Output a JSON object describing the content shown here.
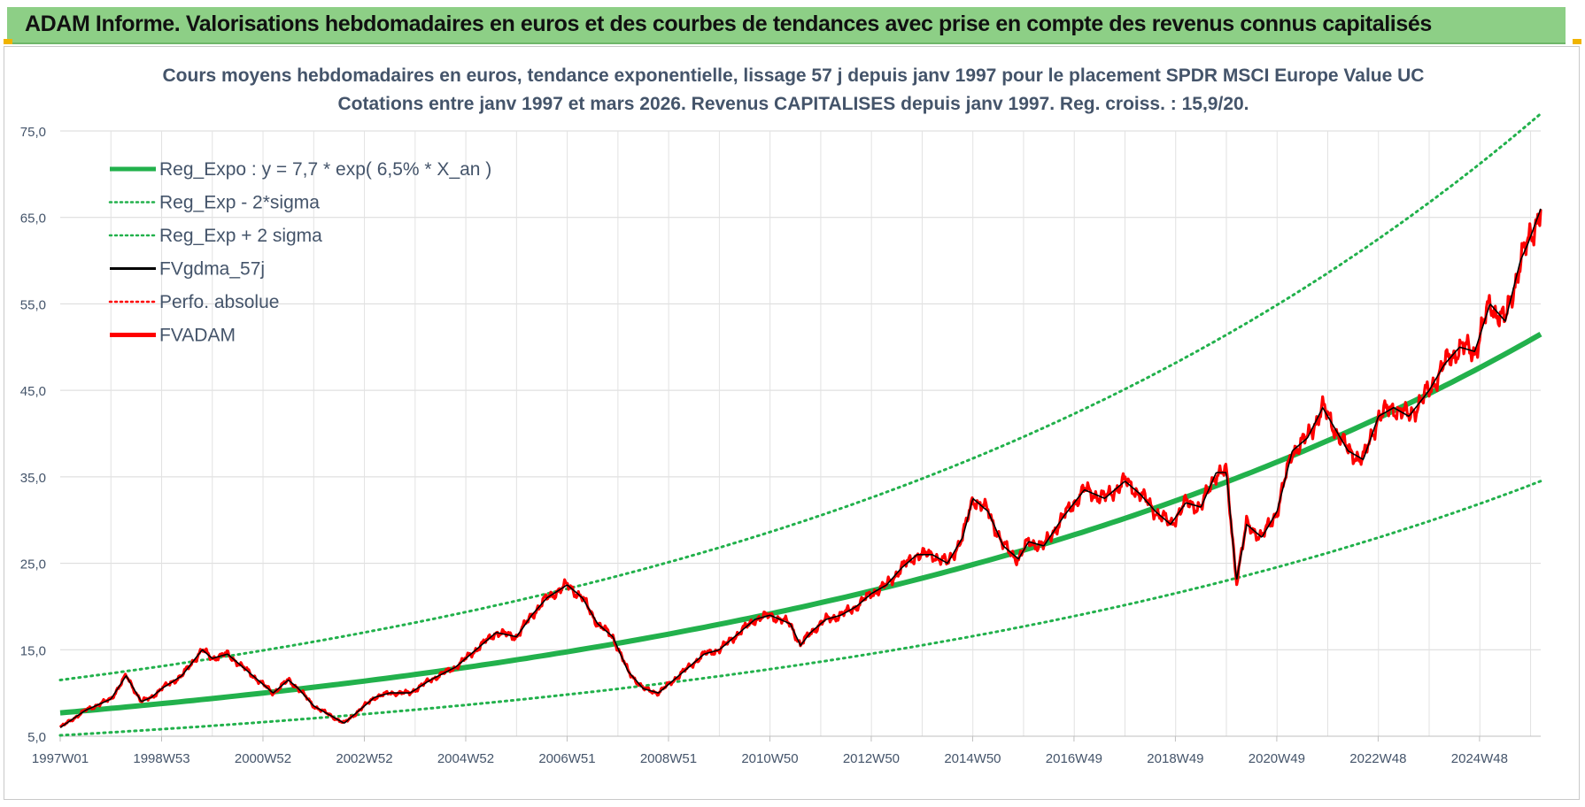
{
  "banner": {
    "title": "ADAM Informe. Valorisations hebdomadaires en euros et des courbes de tendances avec prise en compte des revenus connus capitalisés"
  },
  "chart_data": {
    "type": "line",
    "title_line1": "Cours moyens hebdomadaires en euros, tendance exponentielle, lissage 57 j depuis janv 1997  pour le placement SPDR MSCI Europe Value UC",
    "title_line2": "Cotations entre janv 1997 et mars 2026. Revenus CAPITALISES depuis janv 1997. Reg. croiss. : 15,9/20.",
    "x_start_year": 1997.0,
    "x_end_year": 2026.2,
    "x_tick_labels": [
      "1997W01",
      "1998W53",
      "2000W52",
      "2002W52",
      "2004W52",
      "2006W51",
      "2008W51",
      "2010W50",
      "2012W50",
      "2014W50",
      "2016W49",
      "2018W49",
      "2020W49",
      "2022W48",
      "2024W48"
    ],
    "ylim": [
      5,
      75
    ],
    "y_ticks": [
      "5,0",
      "15,0",
      "25,0",
      "35,0",
      "45,0",
      "55,0",
      "65,0",
      "75,0"
    ],
    "grid": true,
    "legend_position": "top-left",
    "legend": [
      {
        "label": "Reg_Expo : y = 7,7 * exp( 6,5% *  X_an )",
        "color": "#22b14c",
        "style": "solid-thick"
      },
      {
        "label": "Reg_Exp - 2*sigma",
        "color": "#22b14c",
        "style": "dotted"
      },
      {
        "label": "Reg_Exp + 2 sigma",
        "color": "#22b14c",
        "style": "dotted"
      },
      {
        "label": "FVgdma_57j",
        "color": "#000000",
        "style": "solid"
      },
      {
        "label": "Perfo. absolue",
        "color": "#ff0000",
        "style": "dotted"
      },
      {
        "label": "FVADAM",
        "color": "#ff0000",
        "style": "solid-thick"
      }
    ],
    "series": [
      {
        "name": "Reg_Expo : y = 7,7 * exp( 6,5% *  X_an )",
        "x": [
          1997.0,
          2026.2
        ],
        "values": [
          7.7,
          51.5
        ]
      },
      {
        "name": "Reg_Exp - 2*sigma",
        "x": [
          1997.0,
          2026.2
        ],
        "values": [
          5.1,
          34.5
        ]
      },
      {
        "name": "Reg_Exp + 2 sigma",
        "x": [
          1997.0,
          2026.2
        ],
        "values": [
          11.5,
          77.0
        ]
      },
      {
        "name": "FVADAM",
        "x": [
          1997.0,
          1997.5,
          1998.0,
          1998.3,
          1998.6,
          1998.8,
          1999.0,
          1999.4,
          1999.8,
          2000.0,
          2000.3,
          2000.6,
          2000.9,
          2001.2,
          2001.5,
          2001.7,
          2002.0,
          2002.3,
          2002.6,
          2002.8,
          2003.0,
          2003.2,
          2003.5,
          2003.9,
          2004.3,
          2004.8,
          2005.2,
          2005.6,
          2006.0,
          2006.3,
          2006.6,
          2007.0,
          2007.3,
          2007.6,
          2007.9,
          2008.2,
          2008.5,
          2008.8,
          2009.1,
          2009.4,
          2009.7,
          2010.0,
          2010.4,
          2010.7,
          2011.0,
          2011.4,
          2011.6,
          2011.8,
          2012.1,
          2012.4,
          2012.7,
          2013.0,
          2013.3,
          2013.6,
          2013.9,
          2014.2,
          2014.5,
          2014.8,
          2015.0,
          2015.3,
          2015.6,
          2015.9,
          2016.1,
          2016.4,
          2016.8,
          2017.2,
          2017.6,
          2018.0,
          2018.3,
          2018.6,
          2018.9,
          2019.2,
          2019.5,
          2019.8,
          2020.0,
          2020.2,
          2020.4,
          2020.7,
          2021.0,
          2021.3,
          2021.6,
          2021.9,
          2022.2,
          2022.4,
          2022.7,
          2023.0,
          2023.3,
          2023.6,
          2024.0,
          2024.3,
          2024.6,
          2024.9,
          2025.2,
          2025.5,
          2025.8,
          2025.95,
          2026.2
        ],
        "values": [
          6.0,
          8.0,
          9.3,
          12.0,
          9.0,
          9.5,
          10.5,
          12.0,
          15.0,
          14.0,
          14.5,
          13.0,
          11.5,
          10.0,
          11.5,
          10.5,
          8.5,
          7.5,
          6.5,
          7.5,
          8.5,
          9.5,
          10.0,
          10.0,
          11.5,
          13.0,
          15.0,
          17.0,
          16.5,
          19.0,
          21.0,
          22.5,
          21.0,
          18.0,
          16.5,
          12.5,
          10.5,
          10.0,
          11.5,
          13.0,
          14.5,
          15.0,
          17.0,
          18.5,
          19.0,
          18.0,
          15.5,
          17.0,
          18.5,
          19.0,
          20.0,
          21.5,
          22.5,
          24.5,
          26.0,
          26.0,
          25.0,
          28.0,
          32.5,
          31.0,
          27.0,
          25.5,
          27.5,
          27.0,
          30.5,
          33.5,
          32.5,
          34.5,
          33.0,
          31.0,
          29.5,
          32.0,
          31.5,
          35.5,
          35.5,
          23.0,
          29.5,
          28.0,
          31.0,
          38.0,
          39.5,
          43.0,
          40.0,
          38.0,
          37.0,
          42.0,
          43.0,
          42.0,
          45.0,
          48.0,
          50.0,
          49.5,
          55.0,
          53.0,
          60.0,
          62.0,
          66.0
        ]
      }
    ]
  }
}
